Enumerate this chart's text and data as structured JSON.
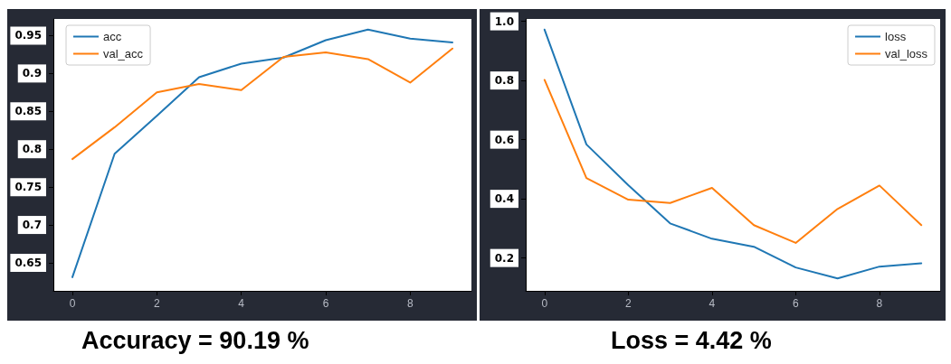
{
  "chart_data": [
    {
      "type": "line",
      "x": [
        0,
        1,
        2,
        3,
        4,
        5,
        6,
        7,
        8,
        9
      ],
      "xlim": [
        -0.45,
        9.45
      ],
      "xticks": [
        0,
        2,
        4,
        6,
        8
      ],
      "ylim": [
        0.613,
        0.972
      ],
      "yticks": [
        0.65,
        0.7,
        0.75,
        0.8,
        0.85,
        0.9,
        0.95
      ],
      "series": [
        {
          "name": "acc",
          "color": "#1f77b4",
          "values": [
            0.631,
            0.794,
            0.844,
            0.895,
            0.913,
            0.921,
            0.944,
            0.958,
            0.946,
            0.941
          ]
        },
        {
          "name": "val_acc",
          "color": "#ff7f0e",
          "values": [
            0.787,
            0.829,
            0.875,
            0.886,
            0.878,
            0.922,
            0.928,
            0.919,
            0.888,
            0.933
          ]
        }
      ],
      "legend": "top left",
      "grid": false,
      "marker": "none",
      "line_style": "solid",
      "annotations": [
        "Accuracy = 90.19 %"
      ]
    },
    {
      "type": "line",
      "x": [
        0,
        1,
        2,
        3,
        4,
        5,
        6,
        7,
        8,
        9
      ],
      "xlim": [
        -0.45,
        9.45
      ],
      "xticks": [
        0,
        2,
        4,
        6,
        8
      ],
      "ylim": [
        0.089,
        1.008
      ],
      "yticks": [
        {
          "value": 0.2,
          "label": "0.2"
        },
        {
          "value": 0.4,
          "label": "0.4"
        },
        {
          "value": 0.6,
          "label": "0.6"
        },
        {
          "value": 0.8,
          "label": "0.8"
        },
        {
          "value": 1.0,
          "label": "1.0"
        }
      ],
      "series": [
        {
          "name": "loss",
          "color": "#1f77b4",
          "values": [
            0.972,
            0.584,
            0.446,
            0.317,
            0.265,
            0.238,
            0.168,
            0.131,
            0.171,
            0.182
          ]
        },
        {
          "name": "val_loss",
          "color": "#ff7f0e",
          "values": [
            0.802,
            0.47,
            0.397,
            0.386,
            0.437,
            0.311,
            0.251,
            0.366,
            0.445,
            0.311
          ]
        }
      ],
      "legend": "top right",
      "grid": false,
      "marker": "none",
      "line_style": "solid",
      "annotations": [
        "Loss = 4.42 %"
      ]
    }
  ]
}
